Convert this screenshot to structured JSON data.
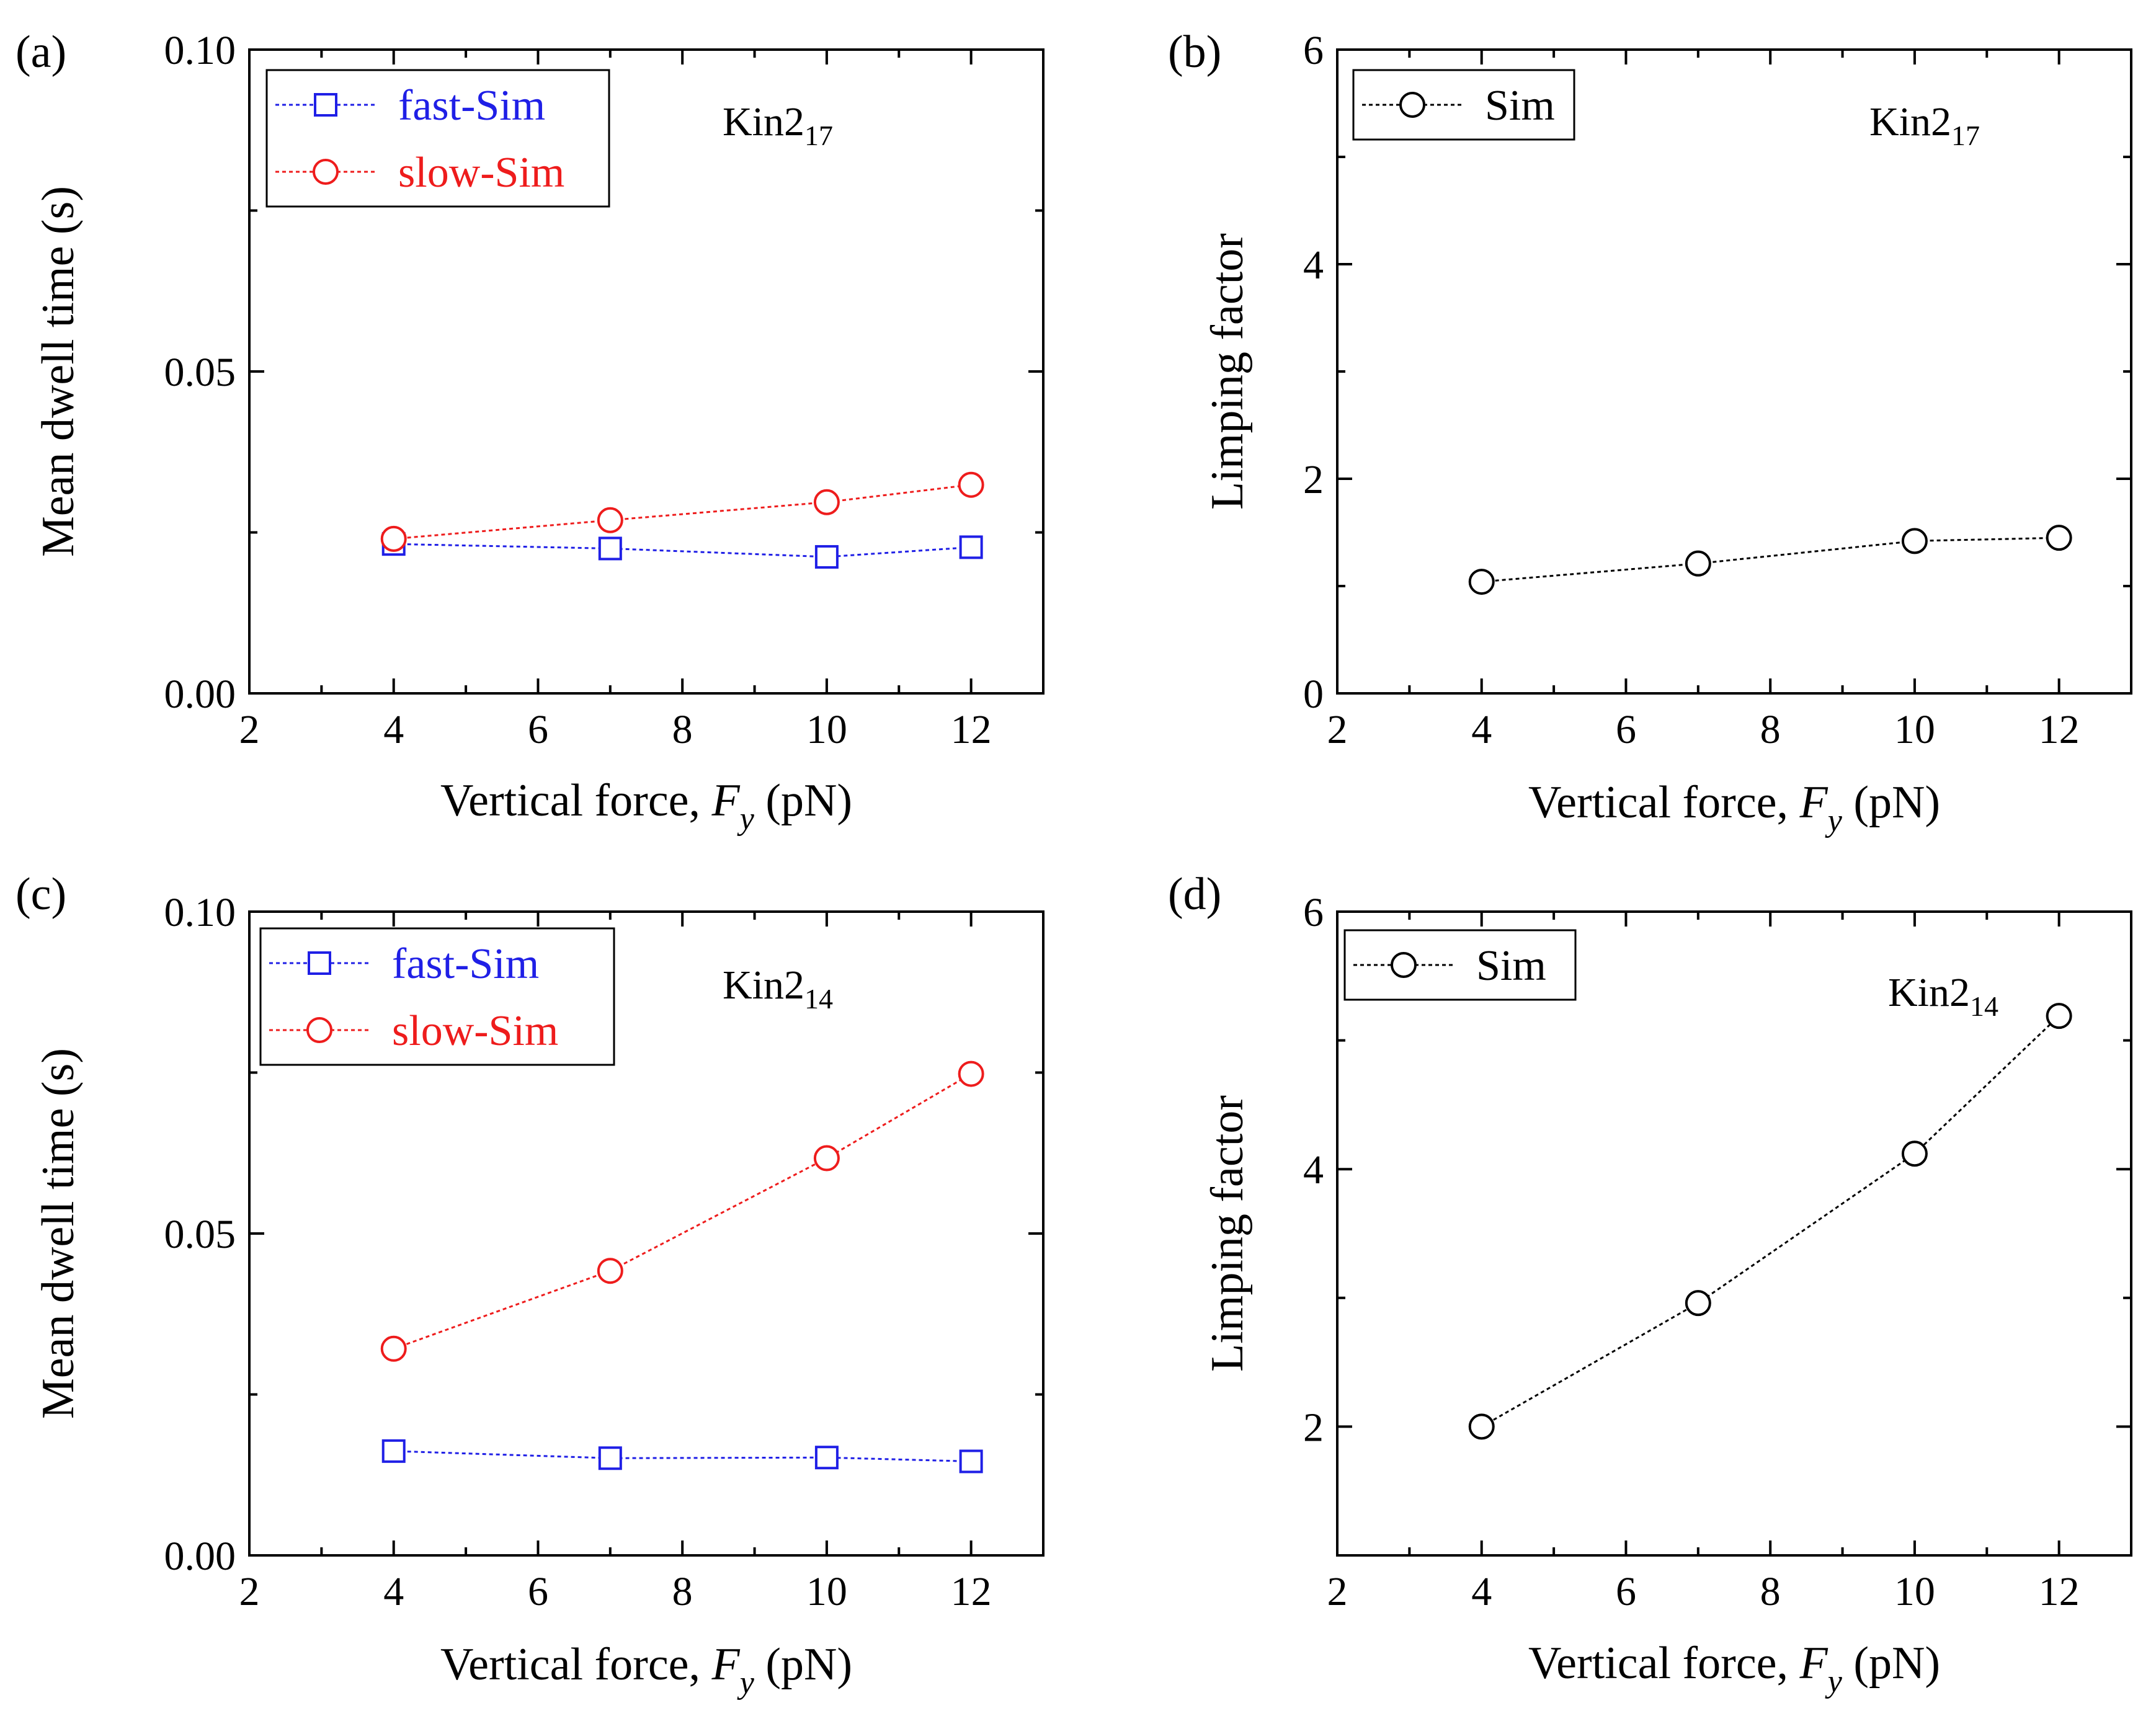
{
  "chart_data": [
    {
      "type": "line",
      "panel_label": "(a)",
      "annotation": {
        "base": "Kin2",
        "subscript": "17"
      },
      "xlabel": {
        "pre": "Vertical force, ",
        "var": "F",
        "sub": "y",
        "post": " (pN)"
      },
      "ylabel": "Mean dwell time (s)",
      "xlim": [
        2,
        13
      ],
      "ylim": [
        0,
        0.1
      ],
      "xticks": [
        2,
        4,
        6,
        8,
        10,
        12
      ],
      "xtick_labels": [
        "2",
        "4",
        "6",
        "8",
        "10",
        "12"
      ],
      "yticks": [
        0,
        0.05,
        0.1
      ],
      "ytick_labels": [
        "0.00",
        "0.05",
        "0.10"
      ],
      "grid": false,
      "legend_position": "top-left",
      "series": [
        {
          "name": "fast-Sim",
          "marker": "square",
          "color": "#1f1fe6",
          "x": [
            4,
            7,
            10,
            12
          ],
          "values": [
            0.0232,
            0.0225,
            0.0212,
            0.0227
          ]
        },
        {
          "name": "slow-Sim",
          "marker": "circle",
          "color": "#ee1c1c",
          "x": [
            4,
            7,
            10,
            12
          ],
          "values": [
            0.024,
            0.0269,
            0.0297,
            0.0324
          ]
        }
      ]
    },
    {
      "type": "line",
      "panel_label": "(b)",
      "annotation": {
        "base": "Kin2",
        "subscript": "17"
      },
      "xlabel": {
        "pre": "Vertical force, ",
        "var": "F",
        "sub": "y",
        "post": " (pN)"
      },
      "ylabel": "Limping factor",
      "xlim": [
        2,
        13
      ],
      "ylim": [
        0,
        6
      ],
      "xticks": [
        2,
        4,
        6,
        8,
        10,
        12
      ],
      "xtick_labels": [
        "2",
        "4",
        "6",
        "8",
        "10",
        "12"
      ],
      "yticks": [
        0,
        2,
        4,
        6
      ],
      "ytick_labels": [
        "0",
        "2",
        "4",
        "6"
      ],
      "grid": false,
      "legend_position": "top-left",
      "series": [
        {
          "name": "Sim",
          "marker": "circle",
          "color": "#000000",
          "x": [
            4,
            7,
            10,
            12
          ],
          "values": [
            1.04,
            1.21,
            1.42,
            1.45
          ]
        }
      ]
    },
    {
      "type": "line",
      "panel_label": "(c)",
      "annotation": {
        "base": "Kin2",
        "subscript": "14"
      },
      "xlabel": {
        "pre": "Vertical force, ",
        "var": "F",
        "sub": "y",
        "post": " (pN)"
      },
      "ylabel": "Mean dwell time (s)",
      "xlim": [
        2,
        13
      ],
      "ylim": [
        0,
        0.1
      ],
      "xticks": [
        2,
        4,
        6,
        8,
        10,
        12
      ],
      "xtick_labels": [
        "2",
        "4",
        "6",
        "8",
        "10",
        "12"
      ],
      "yticks": [
        0,
        0.05,
        0.1
      ],
      "ytick_labels": [
        "0.00",
        "0.05",
        "0.10"
      ],
      "grid": false,
      "legend_position": "top-left",
      "series": [
        {
          "name": "fast-Sim",
          "marker": "square",
          "color": "#1f1fe6",
          "x": [
            4,
            7,
            10,
            12
          ],
          "values": [
            0.0162,
            0.0151,
            0.0152,
            0.0146
          ]
        },
        {
          "name": "slow-Sim",
          "marker": "circle",
          "color": "#ee1c1c",
          "x": [
            4,
            7,
            10,
            12
          ],
          "values": [
            0.0321,
            0.0442,
            0.0617,
            0.0748
          ]
        }
      ]
    },
    {
      "type": "line",
      "panel_label": "(d)",
      "annotation": {
        "base": "Kin2",
        "subscript": "14"
      },
      "xlabel": {
        "pre": "Vertical force, ",
        "var": "F",
        "sub": "y",
        "post": " (pN)"
      },
      "ylabel": "Limping factor",
      "xlim": [
        2,
        13
      ],
      "ylim": [
        1,
        6
      ],
      "xticks": [
        2,
        4,
        6,
        8,
        10,
        12
      ],
      "xtick_labels": [
        "2",
        "4",
        "6",
        "8",
        "10",
        "12"
      ],
      "yticks": [
        2,
        4,
        6
      ],
      "ytick_labels": [
        "2",
        "4",
        "6"
      ],
      "grid": false,
      "legend_position": "top-left",
      "series": [
        {
          "name": "Sim",
          "marker": "circle",
          "color": "#000000",
          "x": [
            4,
            7,
            10,
            12
          ],
          "values": [
            2.0,
            2.96,
            4.12,
            5.19
          ]
        }
      ]
    }
  ]
}
